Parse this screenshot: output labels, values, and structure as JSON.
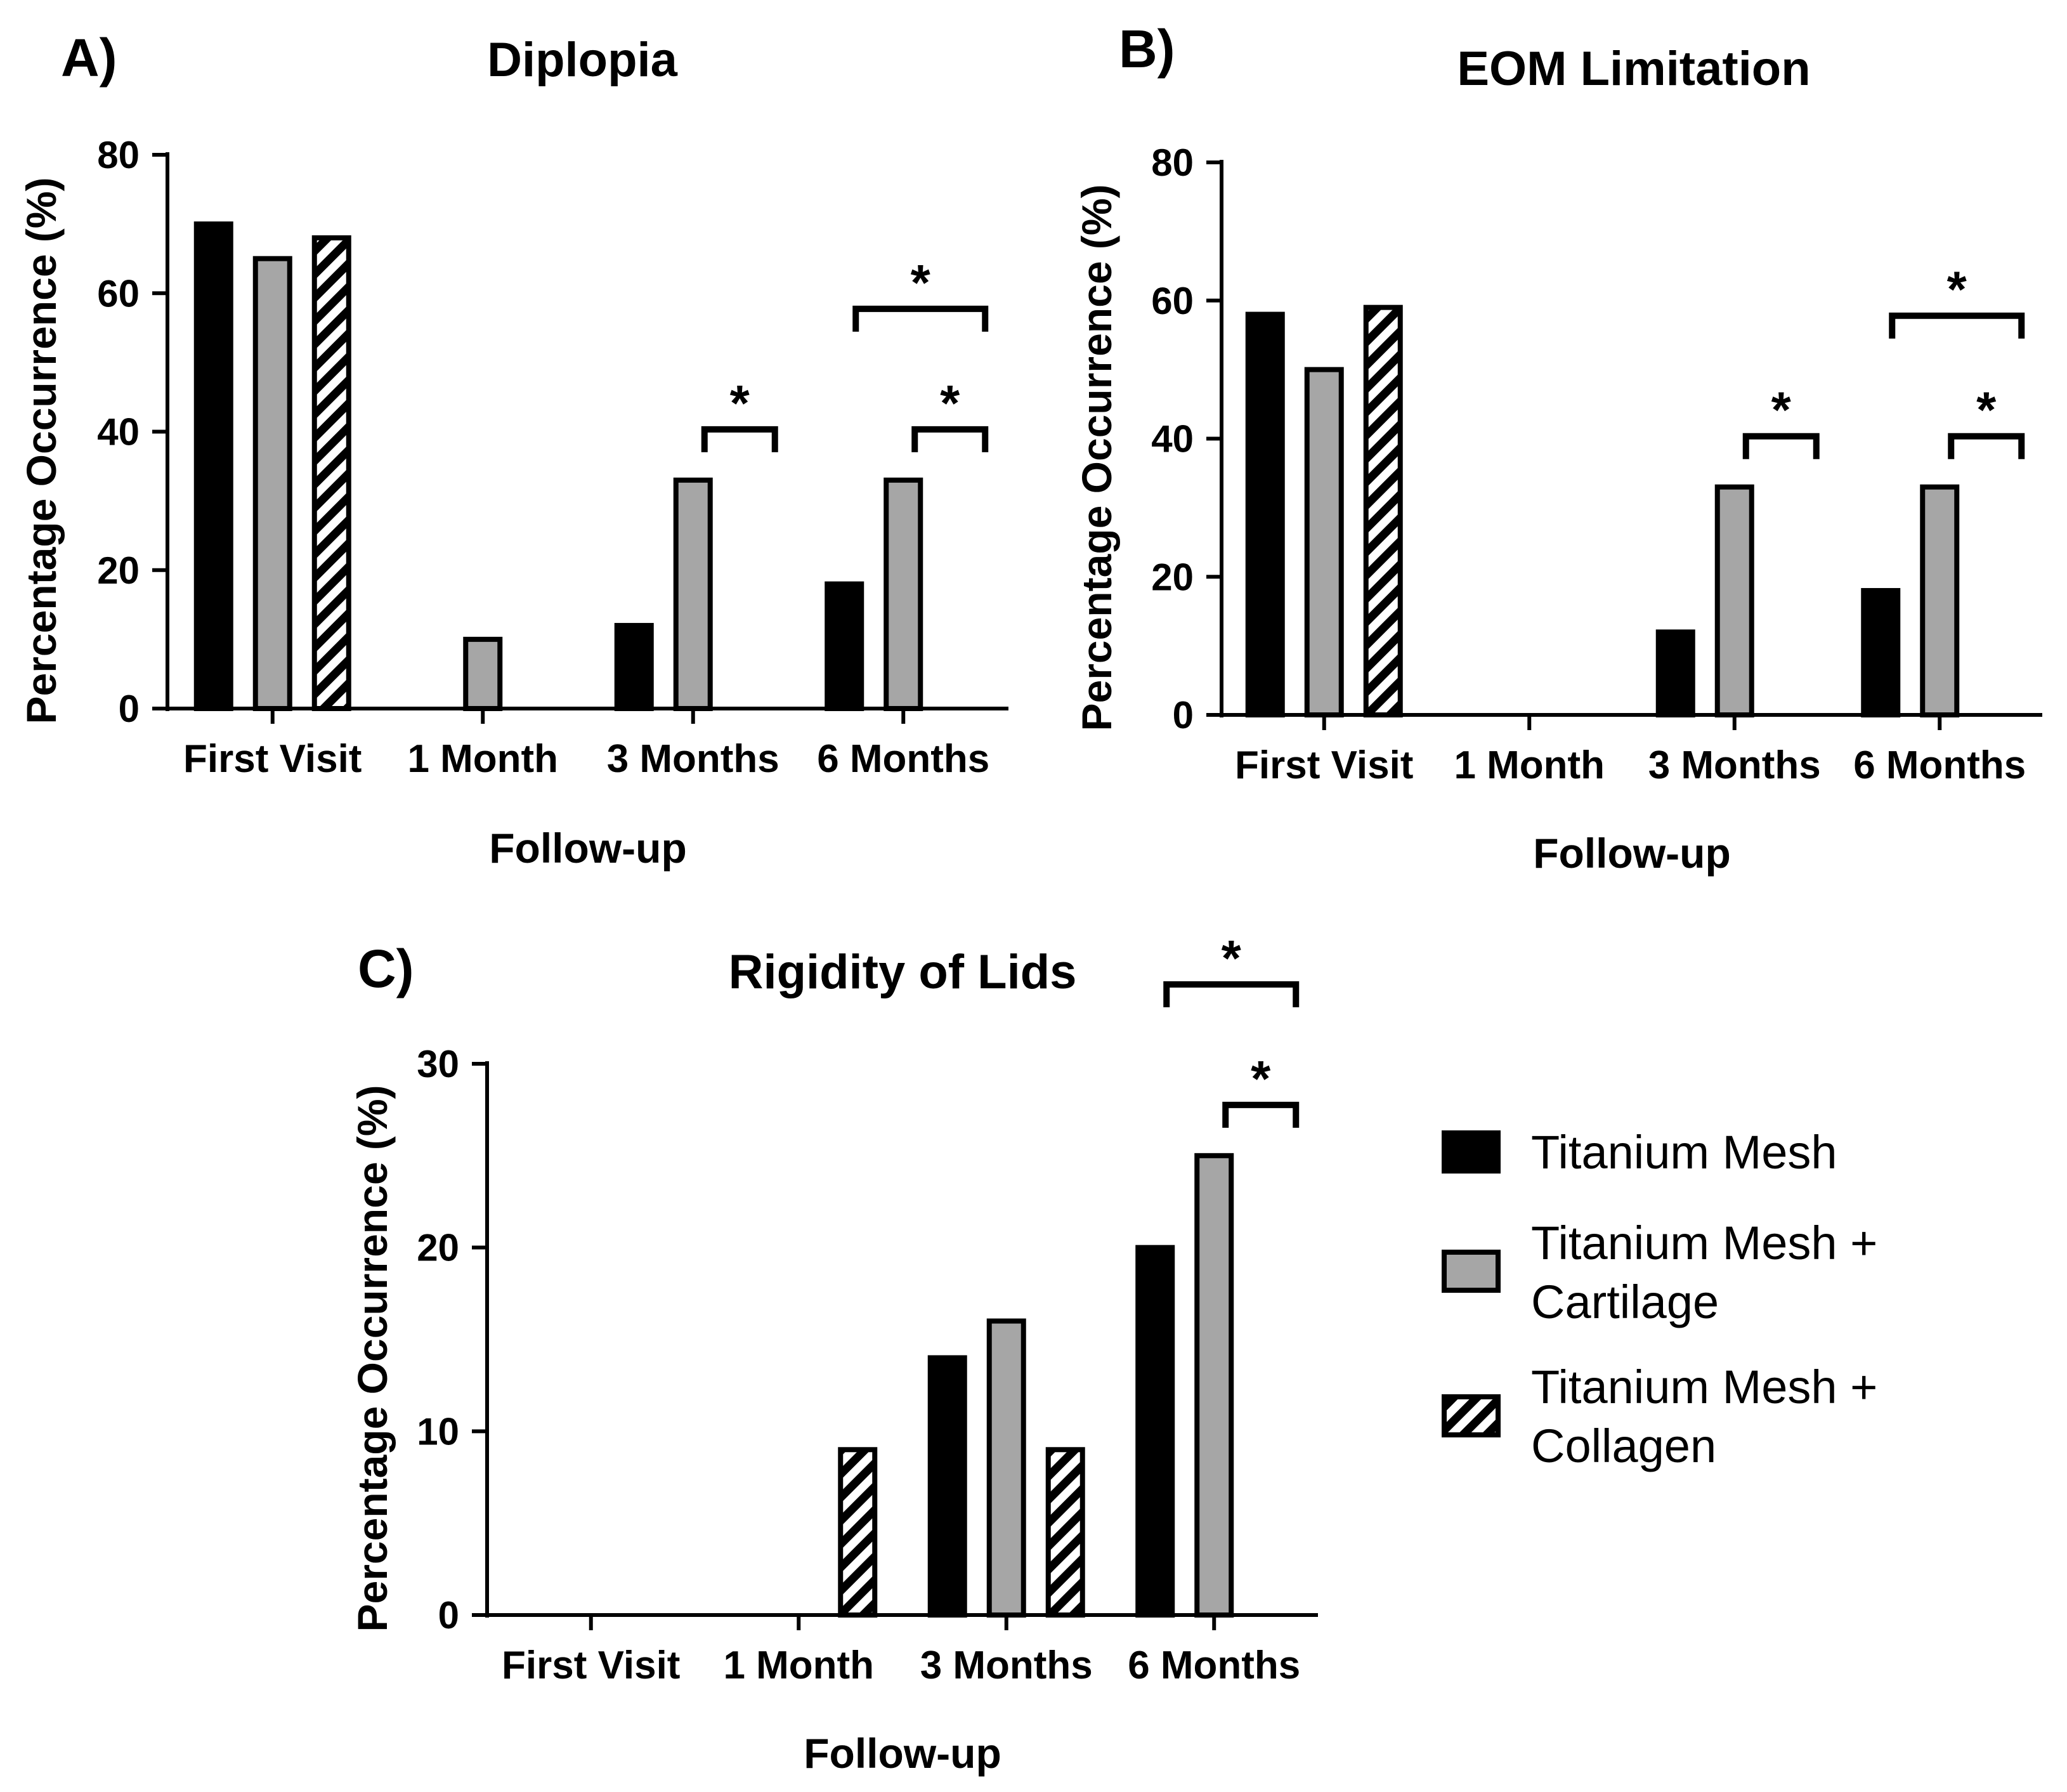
{
  "colors": {
    "titanium_mesh": "#000000",
    "cartilage": "#a6a6a6",
    "collagen_stripe": "#000000",
    "collagen_bg": "#ffffff"
  },
  "legend": {
    "items": [
      {
        "key": "titanium_mesh",
        "lines": [
          "Titanium Mesh"
        ],
        "swatch": "solid-black"
      },
      {
        "key": "cartilage",
        "lines": [
          "Titanium Mesh +",
          "Cartilage"
        ],
        "swatch": "gray"
      },
      {
        "key": "collagen",
        "lines": [
          "Titanium Mesh +",
          "Collagen"
        ],
        "swatch": "hatched"
      }
    ]
  },
  "chart_data": [
    {
      "panel": "A)",
      "type": "bar",
      "title": "Diplopia",
      "xlabel": "Follow-up",
      "ylabel": "Percentage Occurrence (%)",
      "ylim": [
        0,
        80
      ],
      "yticks": [
        "0",
        "20",
        "40",
        "60",
        "80"
      ],
      "categories": [
        "First Visit",
        "1 Month",
        "3 Months",
        "6 Months"
      ],
      "series": [
        {
          "name": "Titanium Mesh",
          "values": [
            70,
            0,
            12,
            18
          ]
        },
        {
          "name": "Titanium Mesh + Cartilage",
          "values": [
            65,
            10,
            33,
            33
          ]
        },
        {
          "name": "Titanium Mesh + Collagen",
          "values": [
            68,
            0,
            0,
            0
          ]
        }
      ],
      "significance": [
        {
          "category": "3 Months",
          "from_series": 1,
          "to_series": 2,
          "label": "*",
          "level": 1
        },
        {
          "category": "6 Months",
          "from_series": 1,
          "to_series": 2,
          "label": "*",
          "level": 1
        },
        {
          "category": "6 Months",
          "from_series": 0,
          "to_series": 2,
          "label": "*",
          "level": 2
        }
      ]
    },
    {
      "panel": "B)",
      "type": "bar",
      "title": "EOM Limitation",
      "xlabel": "Follow-up",
      "ylabel": "Percentage Occurrence (%)",
      "ylim": [
        0,
        80
      ],
      "yticks": [
        "0",
        "20",
        "40",
        "60",
        "80"
      ],
      "categories": [
        "First Visit",
        "1 Month",
        "3 Months",
        "6 Months"
      ],
      "series": [
        {
          "name": "Titanium Mesh",
          "values": [
            58,
            0,
            12,
            18
          ]
        },
        {
          "name": "Titanium Mesh + Cartilage",
          "values": [
            50,
            0,
            33,
            33
          ]
        },
        {
          "name": "Titanium Mesh + Collagen",
          "values": [
            59,
            0,
            0,
            0
          ]
        }
      ],
      "significance": [
        {
          "category": "3 Months",
          "from_series": 1,
          "to_series": 2,
          "label": "*",
          "level": 1
        },
        {
          "category": "6 Months",
          "from_series": 1,
          "to_series": 2,
          "label": "*",
          "level": 1
        },
        {
          "category": "6 Months",
          "from_series": 0,
          "to_series": 2,
          "label": "*",
          "level": 2
        }
      ]
    },
    {
      "panel": "C)",
      "type": "bar",
      "title": "Rigidity of Lids",
      "xlabel": "Follow-up",
      "ylabel": "Percentage Occurrence (%)",
      "ylim": [
        0,
        30
      ],
      "yticks": [
        "0",
        "10",
        "20",
        "30"
      ],
      "categories": [
        "First Visit",
        "1 Month",
        "3 Months",
        "6 Months"
      ],
      "series": [
        {
          "name": "Titanium Mesh",
          "values": [
            0,
            0,
            14,
            20
          ]
        },
        {
          "name": "Titanium Mesh + Cartilage",
          "values": [
            0,
            0,
            16,
            25
          ]
        },
        {
          "name": "Titanium Mesh + Collagen",
          "values": [
            0,
            9,
            9,
            0
          ]
        }
      ],
      "significance": [
        {
          "category": "6 Months",
          "from_series": 1,
          "to_series": 2,
          "label": "*",
          "level": 1
        },
        {
          "category": "6 Months",
          "from_series": 0,
          "to_series": 2,
          "label": "*",
          "level": 2
        }
      ]
    }
  ]
}
